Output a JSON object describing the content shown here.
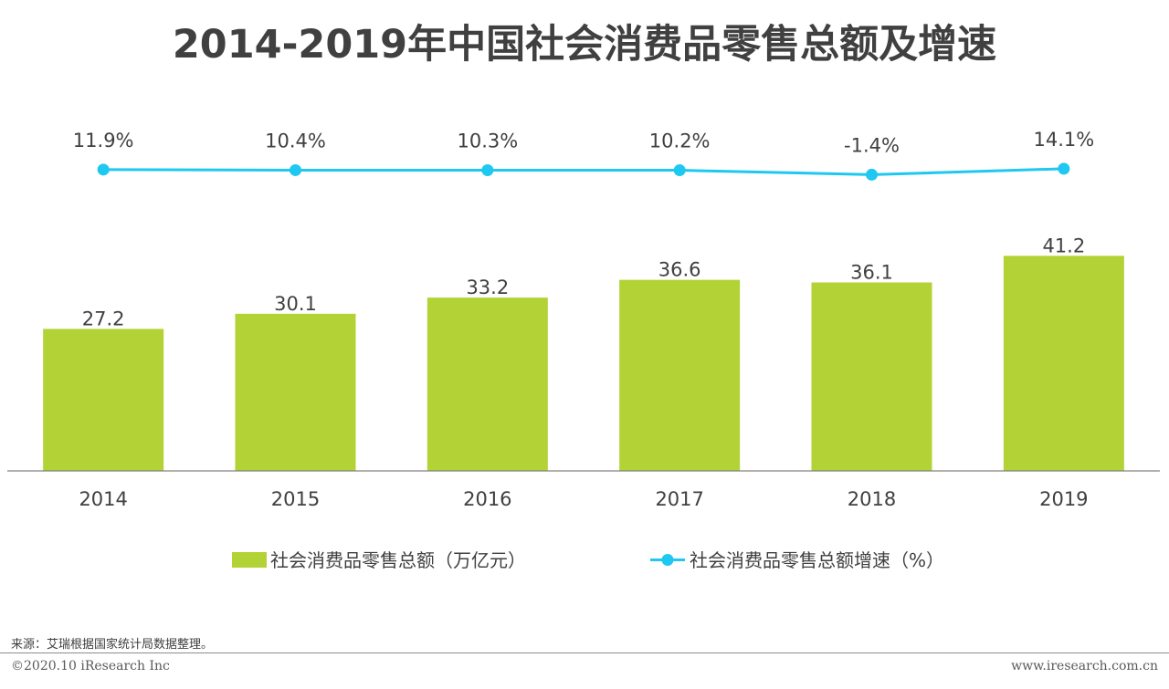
{
  "title": "2014-2019年中国社会消费品零售总额及增速",
  "chart_data": {
    "type": "bar",
    "categories": [
      "2014",
      "2015",
      "2016",
      "2017",
      "2018",
      "2019"
    ],
    "series": [
      {
        "name": "社会消费品零售总额（万亿元）",
        "type": "bar",
        "color": "#b2d235",
        "values": [
          27.2,
          30.1,
          33.2,
          36.6,
          36.1,
          41.2
        ],
        "labels": [
          "27.2",
          "30.1",
          "33.2",
          "36.6",
          "36.1",
          "41.2"
        ]
      },
      {
        "name": "社会消费品零售总额增速（%）",
        "type": "line",
        "color": "#1ec8f0",
        "values": [
          11.9,
          10.4,
          10.3,
          10.2,
          -1.4,
          14.1
        ],
        "labels": [
          "11.9%",
          "10.4%",
          "10.3%",
          "10.2%",
          "-1.4%",
          "14.1%"
        ]
      }
    ],
    "legend_position": "bottom",
    "grid": false
  },
  "footer": {
    "source": "来源：艾瑞根据国家统计局数据整理。",
    "copyright": "©2020.10 iResearch Inc",
    "website": "www.iresearch.com.cn"
  }
}
